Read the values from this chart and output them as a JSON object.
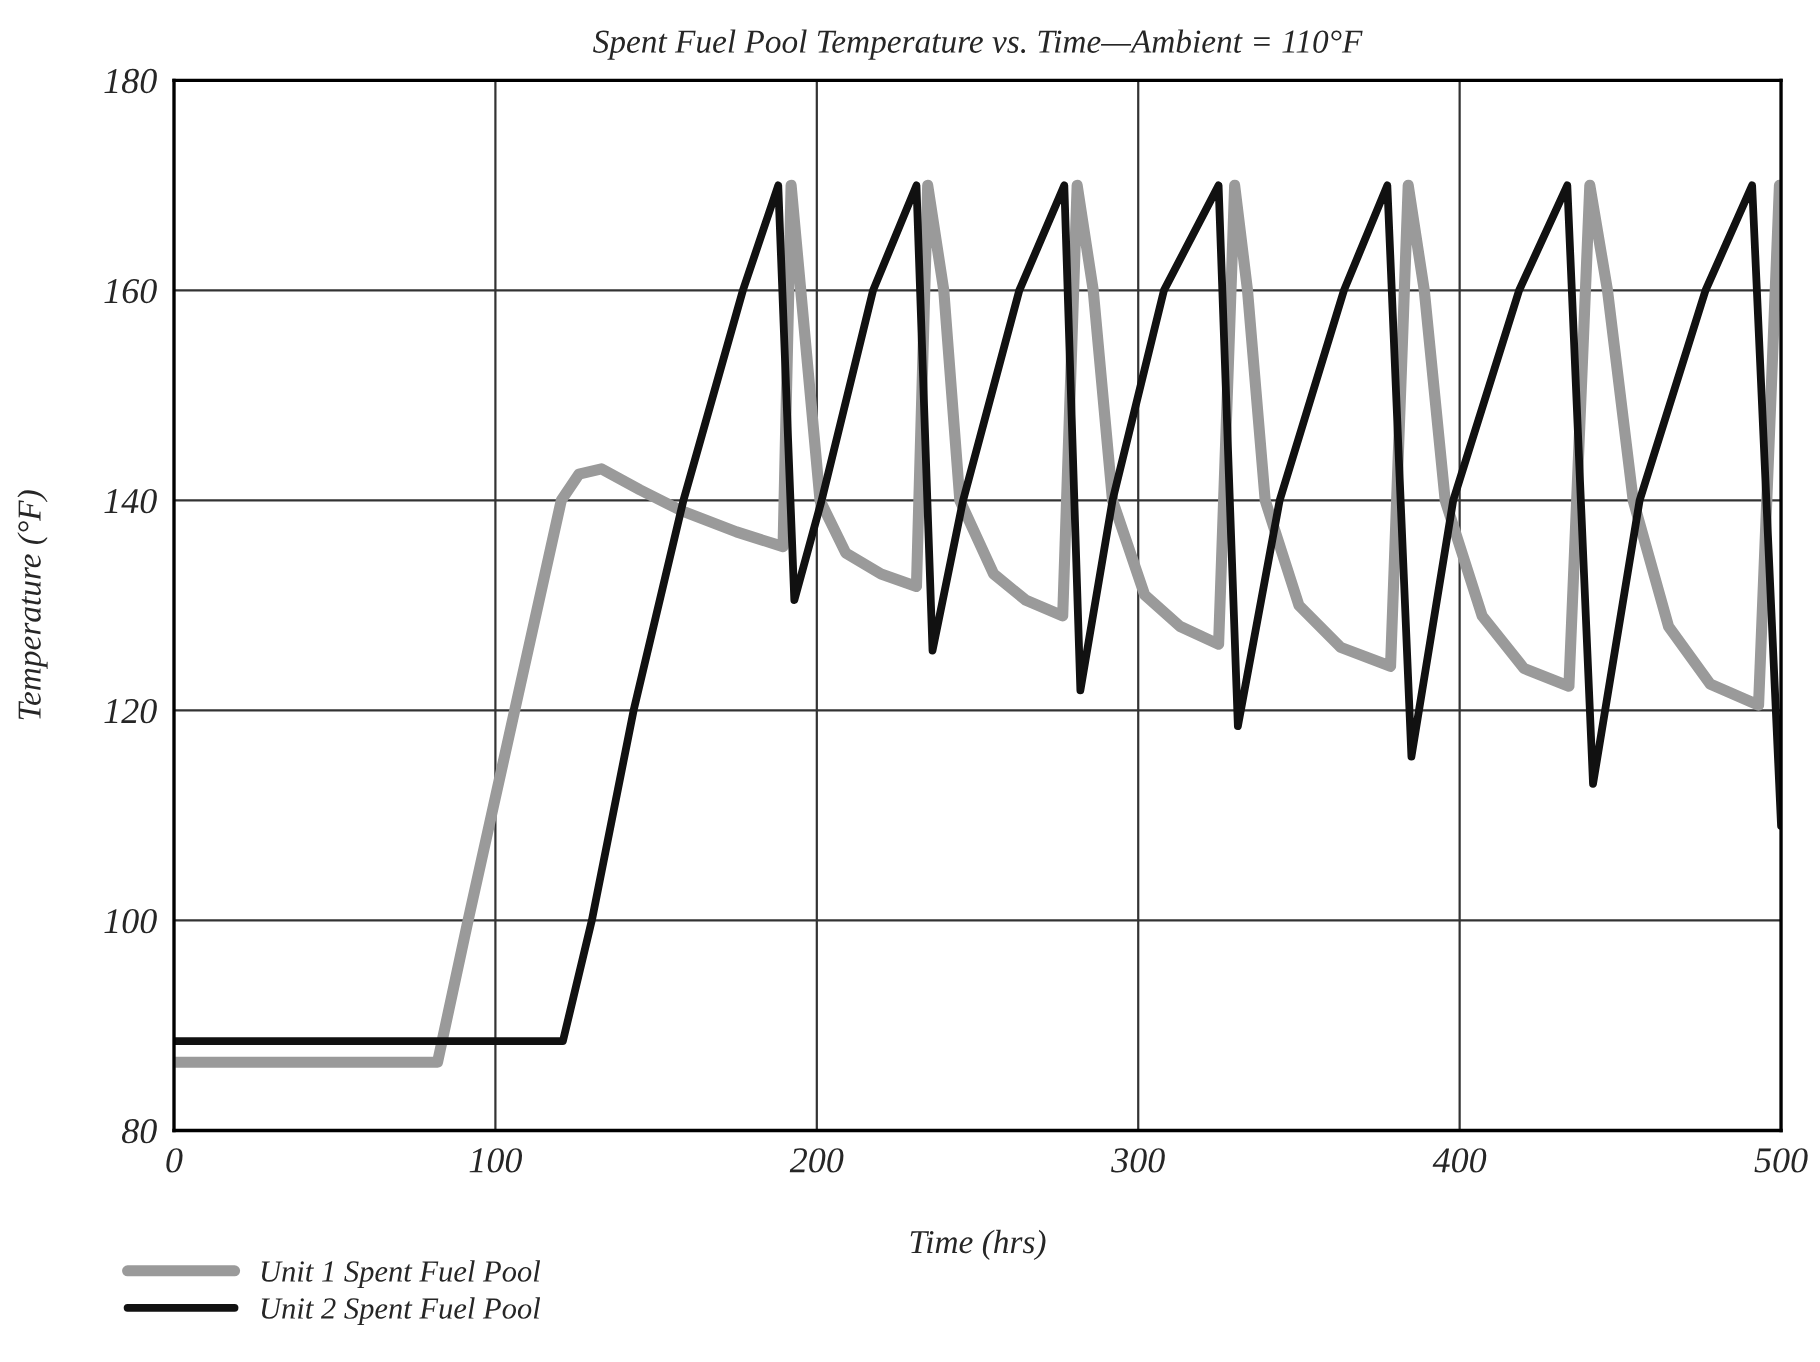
{
  "chart_data": {
    "type": "line",
    "title": "Spent Fuel Pool Temperature vs. Time—Ambient = 110°F",
    "xlabel": "Time (hrs)",
    "ylabel": "Temperature (°F)",
    "xlim": [
      0,
      500
    ],
    "xticks": [
      0,
      100,
      200,
      300,
      400,
      500
    ],
    "ylim": [
      80,
      180
    ],
    "yticks": [
      80,
      100,
      120,
      140,
      160,
      180
    ],
    "grid": true,
    "legend": "bottom left",
    "marker": "none",
    "line_style": "solid",
    "series": [
      {
        "name": "Unit 1 Spent Fuel Pool",
        "color": "#9a9a9a",
        "x": [
          0,
          82,
          91.5,
          106,
          120.5,
          126,
          133,
          145,
          158,
          175,
          189.5,
          192,
          195,
          201,
          209,
          220,
          231,
          234.5,
          239.5,
          244.5,
          255,
          265,
          276.5,
          281,
          286,
          292,
          302,
          313,
          325,
          330,
          334,
          339.5,
          350,
          363,
          378.5,
          384,
          389,
          395.5,
          407,
          420,
          434,
          440.5,
          446,
          454,
          465,
          478,
          493,
          499.5
        ],
        "values": [
          86.5,
          86.5,
          100,
          120,
          140,
          142.5,
          143,
          141,
          139,
          137,
          135.6,
          170,
          160,
          140,
          135,
          133,
          131.8,
          170,
          160,
          140,
          133,
          130.5,
          129,
          170,
          160,
          140,
          131,
          128,
          126.3,
          170,
          160,
          140,
          130,
          126,
          124.2,
          170,
          160,
          140,
          129,
          124,
          122.3,
          170,
          160,
          140,
          128,
          122.5,
          120.5,
          170
        ]
      },
      {
        "name": "Unit 2 Spent Fuel Pool",
        "color": "#111111",
        "x": [
          0,
          121,
          130,
          143,
          158.5,
          177,
          188,
          193,
          201.5,
          217.5,
          231,
          236,
          245.5,
          263,
          277,
          282,
          292,
          308,
          325,
          331,
          344,
          364,
          377.5,
          385,
          398,
          418.5,
          433.5,
          441.5,
          456,
          476.5,
          491,
          500
        ],
        "values": [
          88.5,
          88.5,
          100,
          120,
          140,
          160,
          170,
          130.5,
          140,
          160,
          170,
          125.7,
          140,
          160,
          170,
          121.9,
          140,
          160,
          170,
          118.5,
          140,
          160,
          170,
          115.6,
          140,
          160,
          170,
          113,
          140,
          160,
          170,
          109
        ]
      }
    ]
  }
}
